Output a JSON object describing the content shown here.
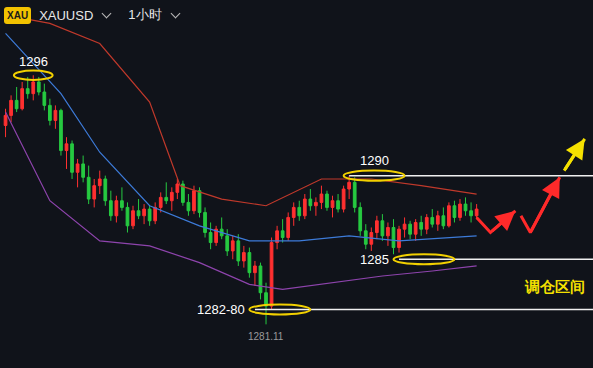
{
  "chart_data": {
    "type": "candlestick",
    "badge": "XAU",
    "symbol": "XAUUSD",
    "period": "1小时",
    "tick_labels": false,
    "xlim": [
      -1,
      106
    ],
    "ylim": [
      1278.5,
      1300.5
    ],
    "x": [
      0,
      1,
      2,
      3,
      4,
      5,
      6,
      7,
      8,
      9,
      10,
      11,
      12,
      13,
      14,
      15,
      16,
      17,
      18,
      19,
      20,
      21,
      22,
      23,
      24,
      25,
      26,
      27,
      28,
      29,
      30,
      31,
      32,
      33,
      34,
      35,
      36,
      37,
      38,
      39,
      40,
      41,
      42,
      43,
      44,
      45,
      46,
      47,
      48,
      49,
      50,
      51,
      52,
      53,
      54,
      55,
      56,
      57,
      58,
      59,
      60,
      61,
      62,
      63,
      64,
      65,
      66,
      67,
      68,
      69,
      70,
      71,
      72,
      73,
      74,
      75,
      76,
      77,
      78,
      79,
      80,
      81,
      82,
      83,
      84,
      85
    ],
    "open": [
      1293.0,
      1293.6,
      1294.5,
      1294.0,
      1295.2,
      1294.9,
      1295.6,
      1295.0,
      1294.2,
      1293.3,
      1293.9,
      1291.5,
      1291.9,
      1290.2,
      1290.7,
      1289.9,
      1288.6,
      1289.4,
      1289.8,
      1288.5,
      1287.6,
      1288.5,
      1288.1,
      1287.0,
      1287.9,
      1287.6,
      1288.0,
      1287.3,
      1288.1,
      1288.7,
      1288.5,
      1289.0,
      1289.5,
      1288.4,
      1287.9,
      1289.1,
      1287.8,
      1286.6,
      1286.0,
      1286.8,
      1286.4,
      1285.5,
      1286.1,
      1284.9,
      1285.4,
      1284.2,
      1284.6,
      1283.0,
      1282.2,
      1286.0,
      1286.7,
      1286.3,
      1287.5,
      1288.1,
      1287.6,
      1288.6,
      1288.2,
      1288.4,
      1288.9,
      1288.1,
      1288.5,
      1288.0,
      1289.2,
      1289.6,
      1288.1,
      1286.7,
      1285.9,
      1286.6,
      1287.3,
      1286.4,
      1286.9,
      1285.7,
      1286.8,
      1287.1,
      1286.5,
      1287.2,
      1286.8,
      1287.5,
      1287.1,
      1287.6,
      1287.0,
      1288.2,
      1287.5,
      1288.3,
      1287.9,
      1287.6
    ],
    "high": [
      1294.0,
      1294.8,
      1295.3,
      1295.6,
      1295.9,
      1296.0,
      1295.9,
      1295.5,
      1294.6,
      1294.2,
      1294.0,
      1292.3,
      1292.1,
      1291.0,
      1291.2,
      1290.6,
      1289.8,
      1290.3,
      1290.0,
      1289.1,
      1288.8,
      1289.3,
      1288.4,
      1288.2,
      1288.6,
      1288.3,
      1288.2,
      1288.4,
      1289.0,
      1289.6,
      1289.3,
      1289.8,
      1289.7,
      1288.9,
      1289.4,
      1289.3,
      1288.1,
      1287.2,
      1287.0,
      1287.5,
      1286.8,
      1286.4,
      1286.5,
      1285.8,
      1285.7,
      1284.9,
      1284.8,
      1283.6,
      1286.3,
      1287.0,
      1287.4,
      1287.8,
      1288.4,
      1288.5,
      1288.9,
      1289.2,
      1288.7,
      1289.4,
      1289.1,
      1288.8,
      1288.9,
      1289.4,
      1290.0,
      1289.9,
      1288.4,
      1287.1,
      1286.9,
      1287.6,
      1287.7,
      1287.2,
      1287.4,
      1287.0,
      1287.5,
      1287.3,
      1287.4,
      1287.6,
      1287.7,
      1288.0,
      1287.9,
      1288.1,
      1288.4,
      1288.5,
      1288.6,
      1288.7,
      1288.4,
      1288.3
    ],
    "low": [
      1292.3,
      1293.2,
      1293.8,
      1293.9,
      1294.6,
      1294.5,
      1294.8,
      1293.9,
      1293.0,
      1292.8,
      1291.2,
      1290.4,
      1289.8,
      1289.3,
      1289.6,
      1288.3,
      1288.1,
      1288.9,
      1288.2,
      1287.3,
      1287.2,
      1287.9,
      1286.6,
      1286.8,
      1287.4,
      1287.1,
      1287.0,
      1287.1,
      1287.8,
      1288.3,
      1287.9,
      1288.6,
      1288.2,
      1287.6,
      1287.7,
      1287.5,
      1286.3,
      1285.6,
      1285.8,
      1286.2,
      1285.2,
      1285.0,
      1284.6,
      1284.5,
      1283.9,
      1283.4,
      1282.6,
      1281.11,
      1282.0,
      1285.6,
      1286.0,
      1286.1,
      1287.0,
      1287.3,
      1287.4,
      1287.9,
      1287.6,
      1288.0,
      1287.9,
      1287.5,
      1287.8,
      1287.8,
      1288.6,
      1287.8,
      1286.4,
      1285.6,
      1285.5,
      1286.2,
      1286.1,
      1285.8,
      1285.3,
      1285.4,
      1286.3,
      1286.2,
      1286.1,
      1286.4,
      1286.5,
      1286.9,
      1286.7,
      1286.8,
      1286.9,
      1287.2,
      1287.3,
      1287.6,
      1287.2,
      1287.4
    ],
    "close": [
      1293.6,
      1294.5,
      1294.0,
      1295.2,
      1294.9,
      1295.6,
      1295.0,
      1294.2,
      1293.3,
      1293.9,
      1291.5,
      1291.9,
      1290.2,
      1290.7,
      1289.9,
      1288.6,
      1289.4,
      1289.8,
      1288.5,
      1287.6,
      1288.5,
      1288.1,
      1287.0,
      1287.9,
      1287.6,
      1288.0,
      1287.3,
      1288.1,
      1288.7,
      1288.5,
      1289.0,
      1289.5,
      1288.4,
      1287.9,
      1289.1,
      1287.8,
      1286.6,
      1286.0,
      1286.8,
      1286.4,
      1285.5,
      1286.1,
      1284.9,
      1285.4,
      1284.2,
      1284.6,
      1283.0,
      1282.2,
      1286.0,
      1286.7,
      1286.3,
      1287.5,
      1288.1,
      1287.6,
      1288.6,
      1288.2,
      1288.4,
      1288.9,
      1288.1,
      1288.5,
      1288.0,
      1289.2,
      1289.6,
      1288.1,
      1286.7,
      1285.9,
      1286.6,
      1287.3,
      1286.4,
      1286.9,
      1285.7,
      1286.8,
      1287.1,
      1286.5,
      1287.2,
      1286.8,
      1287.5,
      1287.1,
      1287.6,
      1287.0,
      1288.2,
      1287.5,
      1288.3,
      1287.9,
      1287.6,
      1288.0
    ],
    "series": [
      {
        "type": "line",
        "color": "#c0392b",
        "x": [
          0,
          8,
          17,
          26,
          31.5,
          39,
          47,
          57,
          66,
          75,
          85
        ],
        "values": [
          1299.6,
          1299.1,
          1297.9,
          1294.4,
          1289.4,
          1288.6,
          1288.2,
          1289.8,
          1289.8,
          1289.4,
          1288.9
        ]
      },
      {
        "type": "line",
        "color": "#3d7bd9",
        "x": [
          0,
          10,
          17,
          26,
          35,
          44,
          53,
          62,
          71,
          85
        ],
        "values": [
          1298.5,
          1294.9,
          1291.4,
          1288.2,
          1287.0,
          1286.1,
          1286.1,
          1286.4,
          1286.1,
          1286.4
        ]
      },
      {
        "type": "line",
        "color": "#8e44ad",
        "x": [
          0,
          8,
          17,
          26,
          35,
          44,
          50,
          59,
          68,
          77,
          85
        ],
        "values": [
          1293.8,
          1288.5,
          1286.1,
          1285.8,
          1284.8,
          1283.5,
          1283.2,
          1283.6,
          1284.0,
          1284.3,
          1284.6
        ]
      },
      {
        "type": "line",
        "color": "#ff2a2a",
        "marker": "arrow",
        "x": [
          85,
          87.5,
          92
        ],
        "values": [
          1287.5,
          1286.6,
          1287.9
        ]
      },
      {
        "type": "line",
        "color": "#ff2a2a",
        "marker": "arrow",
        "x": [
          93,
          94.7,
          100
        ],
        "values": [
          1287.6,
          1286.6,
          1289.9
        ]
      },
      {
        "type": "line",
        "color": "#f5e100",
        "marker": "arrow",
        "x": [
          100.8,
          104.5
        ],
        "values": [
          1290.3,
          1292.2
        ]
      }
    ],
    "levels": [
      {
        "value": 1290,
        "label": "1290",
        "start": 62
      },
      {
        "value": 1285,
        "label": "1285",
        "start": 71
      },
      {
        "value": 1282,
        "label": "1282-80",
        "start": 45
      }
    ],
    "annotations": [
      {
        "text": "1296",
        "value": 1296
      },
      {
        "text": "1281.11",
        "value": 1281.11
      }
    ],
    "zone_label": "调仓区间"
  }
}
